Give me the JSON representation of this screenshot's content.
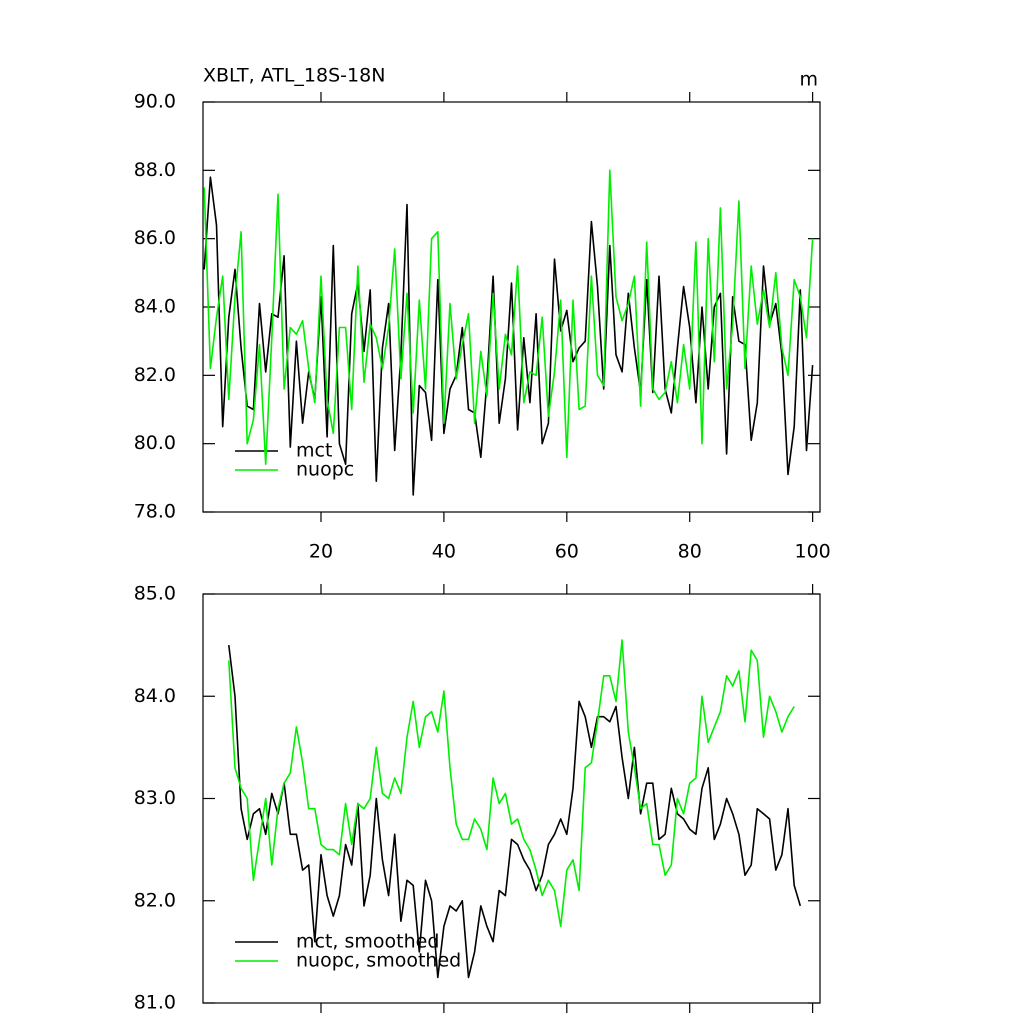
{
  "chart_data": [
    {
      "type": "line",
      "title": "XBLT, ATL_18S-18N",
      "unit": "m",
      "x": [
        1,
        2,
        3,
        4,
        5,
        6,
        7,
        8,
        9,
        10,
        11,
        12,
        13,
        14,
        15,
        16,
        17,
        18,
        19,
        20,
        21,
        22,
        23,
        24,
        25,
        26,
        27,
        28,
        29,
        30,
        31,
        32,
        33,
        34,
        35,
        36,
        37,
        38,
        39,
        40,
        41,
        42,
        43,
        44,
        45,
        46,
        47,
        48,
        49,
        50,
        51,
        52,
        53,
        54,
        55,
        56,
        57,
        58,
        59,
        60,
        61,
        62,
        63,
        64,
        65,
        66,
        67,
        68,
        69,
        70,
        71,
        72,
        73,
        74,
        75,
        76,
        77,
        78,
        79,
        80,
        81,
        82,
        83,
        84,
        85,
        86,
        87,
        88,
        89,
        90,
        91,
        92,
        93,
        94,
        95,
        96,
        97,
        98,
        99,
        100
      ],
      "series": [
        {
          "name": "mct",
          "color": "#000000",
          "values": [
            85.1,
            87.8,
            86.4,
            80.5,
            83.7,
            85.1,
            82.8,
            81.1,
            81.0,
            84.1,
            82.1,
            83.8,
            83.7,
            85.5,
            79.9,
            83.0,
            80.6,
            82.1,
            81.3,
            84.3,
            80.2,
            85.8,
            80.0,
            79.4,
            83.8,
            84.7,
            82.7,
            84.5,
            78.9,
            82.8,
            84.1,
            79.8,
            82.6,
            87.0,
            78.5,
            81.7,
            81.5,
            80.1,
            84.8,
            80.3,
            81.6,
            82.0,
            83.4,
            81.0,
            80.9,
            79.6,
            81.8,
            84.9,
            80.6,
            81.9,
            84.7,
            80.4,
            83.1,
            81.2,
            83.8,
            80.0,
            80.6,
            85.4,
            83.3,
            83.9,
            82.4,
            82.8,
            83.0,
            86.5,
            84.6,
            81.6,
            85.8,
            82.6,
            82.1,
            84.4,
            82.8,
            81.5,
            84.8,
            81.5,
            84.9,
            81.6,
            80.9,
            82.8,
            84.6,
            83.4,
            81.2,
            84.0,
            81.6,
            84.0,
            84.4,
            79.7,
            84.3,
            83.0,
            82.9,
            80.1,
            81.2,
            85.2,
            83.5,
            84.1,
            82.6,
            79.1,
            80.5,
            84.5,
            79.8,
            82.3
          ]
        },
        {
          "name": "nuopc",
          "color": "#00ee00",
          "values": [
            87.5,
            82.2,
            83.7,
            84.9,
            81.3,
            84.3,
            86.2,
            80.0,
            80.7,
            82.9,
            79.4,
            83.1,
            87.3,
            81.6,
            83.4,
            83.2,
            83.6,
            82.2,
            81.2,
            84.9,
            81.3,
            80.3,
            83.4,
            83.4,
            81.0,
            85.2,
            81.8,
            83.5,
            83.1,
            82.2,
            83.4,
            85.7,
            81.9,
            84.4,
            80.9,
            84.2,
            81.6,
            86.0,
            86.2,
            80.6,
            84.1,
            81.9,
            82.9,
            83.8,
            80.6,
            82.7,
            81.4,
            84.4,
            81.6,
            83.2,
            82.6,
            85.2,
            81.2,
            82.1,
            82.0,
            83.7,
            80.8,
            82.1,
            84.2,
            79.6,
            84.2,
            81.0,
            81.1,
            84.9,
            82.0,
            81.7,
            88.0,
            84.3,
            83.6,
            84.1,
            84.9,
            81.1,
            85.9,
            81.6,
            81.3,
            81.5,
            82.4,
            81.2,
            82.9,
            81.6,
            85.9,
            80.0,
            86.0,
            82.4,
            86.9,
            81.6,
            83.5,
            87.1,
            82.2,
            85.2,
            83.5,
            84.5,
            83.4,
            85.0,
            82.8,
            82.0,
            84.8,
            84.3,
            83.1,
            86.0
          ]
        }
      ],
      "xlim": [
        0.8,
        101.2
      ],
      "xticks": [
        20,
        40,
        60,
        80,
        100
      ],
      "ylim": [
        78,
        90
      ],
      "yticks": [
        {
          "value": 78,
          "label": "78.0"
        },
        {
          "value": 80,
          "label": "80.0"
        },
        {
          "value": 82,
          "label": "82.0"
        },
        {
          "value": 84,
          "label": "84.0"
        },
        {
          "value": 86,
          "label": "86.0"
        },
        {
          "value": 88,
          "label": "88.0"
        },
        {
          "value": 90,
          "label": "90.0"
        }
      ],
      "legend": "lower-left"
    },
    {
      "type": "line",
      "series": [
        {
          "name": "mct, smoothed",
          "color": "#000000",
          "x": [
            5,
            6,
            7,
            8,
            9,
            10,
            11,
            12,
            13,
            14,
            15,
            16,
            17,
            18,
            19,
            20,
            21,
            22,
            23,
            24,
            25,
            26,
            27,
            28,
            29,
            30,
            31,
            32,
            33,
            34,
            35,
            36,
            37,
            38,
            39,
            40,
            41,
            42,
            43,
            44,
            45,
            46,
            47,
            48,
            49,
            50,
            51,
            52,
            53,
            54,
            55,
            56,
            57,
            58,
            59,
            60,
            61,
            62,
            63,
            64,
            65,
            66,
            67,
            68,
            69,
            70,
            71,
            72,
            73,
            74,
            75,
            76,
            77,
            78,
            79,
            80,
            81,
            82,
            83,
            84,
            85,
            86,
            87,
            88,
            89,
            90,
            91,
            92,
            93,
            94,
            95,
            96,
            97,
            98
          ],
          "values": [
            84.5,
            84.0,
            82.9,
            82.6,
            82.85,
            82.9,
            82.65,
            83.05,
            82.85,
            83.15,
            82.65,
            82.65,
            82.3,
            82.35,
            81.6,
            82.45,
            82.05,
            81.85,
            82.05,
            82.55,
            82.35,
            82.95,
            81.95,
            82.25,
            83.0,
            82.4,
            82.05,
            82.65,
            81.8,
            82.2,
            82.15,
            81.5,
            82.2,
            82.0,
            81.25,
            81.75,
            81.95,
            81.9,
            82.0,
            81.25,
            81.5,
            81.95,
            81.75,
            81.6,
            82.1,
            82.05,
            82.6,
            82.55,
            82.4,
            82.3,
            82.1,
            82.25,
            82.55,
            82.65,
            82.8,
            82.65,
            83.1,
            83.95,
            83.8,
            83.5,
            83.8,
            83.8,
            83.75,
            83.9,
            83.4,
            83.0,
            83.5,
            82.85,
            83.15,
            83.15,
            82.6,
            82.65,
            83.1,
            82.85,
            82.8,
            82.7,
            82.65,
            83.1,
            83.3,
            82.6,
            82.75,
            83.0,
            82.85,
            82.65,
            82.25,
            82.35,
            82.9,
            82.85,
            82.8,
            82.3,
            82.45,
            82.9,
            82.15,
            81.95
          ]
        },
        {
          "name": "nuopc, smoothed",
          "color": "#00ee00",
          "x": [
            5,
            6,
            7,
            8,
            9,
            10,
            11,
            12,
            13,
            14,
            15,
            16,
            17,
            18,
            19,
            20,
            21,
            22,
            23,
            24,
            25,
            26,
            27,
            28,
            29,
            30,
            31,
            32,
            33,
            34,
            35,
            36,
            37,
            38,
            39,
            40,
            41,
            42,
            43,
            44,
            45,
            46,
            47,
            48,
            49,
            50,
            51,
            52,
            53,
            54,
            55,
            56,
            57,
            58,
            59,
            60,
            61,
            62,
            63,
            64,
            65,
            66,
            67,
            68,
            69,
            70,
            71,
            72,
            73,
            74,
            75,
            76,
            77,
            78,
            79,
            80,
            81,
            82,
            83,
            84,
            85,
            86,
            87,
            88,
            89,
            90,
            91,
            92,
            93,
            94,
            95,
            96,
            97
          ],
          "values": [
            84.35,
            83.3,
            83.1,
            83.0,
            82.2,
            82.6,
            83.0,
            82.35,
            82.9,
            83.15,
            83.25,
            83.7,
            83.35,
            82.9,
            82.9,
            82.55,
            82.5,
            82.5,
            82.45,
            82.95,
            82.55,
            82.95,
            82.9,
            83.0,
            83.5,
            83.05,
            83.0,
            83.2,
            83.05,
            83.6,
            83.95,
            83.5,
            83.8,
            83.85,
            83.65,
            84.05,
            83.3,
            82.75,
            82.6,
            82.6,
            82.8,
            82.7,
            82.5,
            83.2,
            82.95,
            83.05,
            82.75,
            82.8,
            82.6,
            82.5,
            82.3,
            82.05,
            82.2,
            82.1,
            81.75,
            82.3,
            82.4,
            82.1,
            83.3,
            83.35,
            83.75,
            84.2,
            84.2,
            83.95,
            84.55,
            83.65,
            83.3,
            82.9,
            82.95,
            82.55,
            82.55,
            82.25,
            82.35,
            83.0,
            82.85,
            83.15,
            83.2,
            84.0,
            83.55,
            83.7,
            83.85,
            84.2,
            84.1,
            84.25,
            83.75,
            84.45,
            84.35,
            83.6,
            84.0,
            83.85,
            83.65,
            83.8,
            83.9
          ]
        }
      ],
      "xlim": [
        0.8,
        101.2
      ],
      "xticks": [
        20,
        40,
        60,
        80,
        100
      ],
      "ylim": [
        81,
        85
      ],
      "yticks": [
        {
          "value": 81,
          "label": "81.0"
        },
        {
          "value": 82,
          "label": "82.0"
        },
        {
          "value": 83,
          "label": "83.0"
        },
        {
          "value": 84,
          "label": "84.0"
        },
        {
          "value": 85,
          "label": "85.0"
        }
      ],
      "legend": "lower-left"
    }
  ]
}
